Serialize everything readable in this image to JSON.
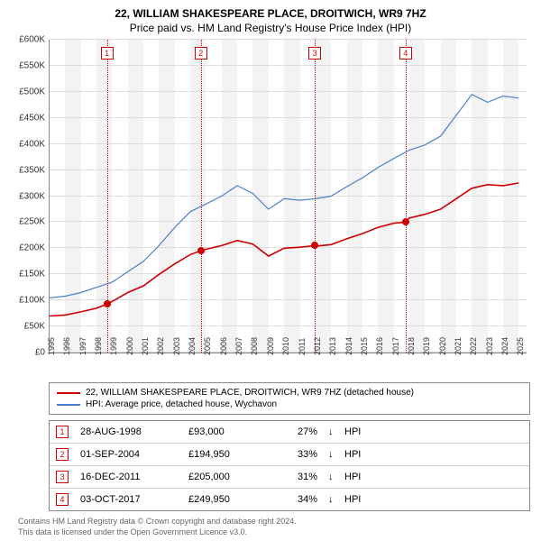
{
  "title_line1": "22, WILLIAM SHAKESPEARE PLACE, DROITWICH, WR9 7HZ",
  "title_line2": "Price paid vs. HM Land Registry's House Price Index (HPI)",
  "chart": {
    "type": "line",
    "background_color": "#ffffff",
    "band_color": "#f3f3f3",
    "grid_color": "#dddddd",
    "axis_color": "#888888",
    "x": {
      "min": 1995,
      "max": 2025.5,
      "ticks": [
        1995,
        1996,
        1997,
        1998,
        1999,
        2000,
        2001,
        2002,
        2003,
        2004,
        2005,
        2006,
        2007,
        2008,
        2009,
        2010,
        2011,
        2012,
        2013,
        2014,
        2015,
        2016,
        2017,
        2018,
        2019,
        2020,
        2021,
        2022,
        2023,
        2024,
        2025
      ]
    },
    "y": {
      "min": 0,
      "max": 600000,
      "tick_step": 50000,
      "labels": [
        "£0",
        "£50K",
        "£100K",
        "£150K",
        "£200K",
        "£250K",
        "£300K",
        "£350K",
        "£400K",
        "£450K",
        "£500K",
        "£550K",
        "£600K"
      ]
    },
    "series": [
      {
        "name": "22, WILLIAM SHAKESPEARE PLACE, DROITWICH, WR9 7HZ (detached house)",
        "color": "#cc0000",
        "width": 1.6,
        "points": [
          [
            1995,
            70000
          ],
          [
            1996,
            72000
          ],
          [
            1997,
            78000
          ],
          [
            1998,
            85000
          ],
          [
            1998.67,
            93000
          ],
          [
            1999,
            98000
          ],
          [
            2000,
            115000
          ],
          [
            2001,
            128000
          ],
          [
            2002,
            150000
          ],
          [
            2003,
            170000
          ],
          [
            2004,
            188000
          ],
          [
            2004.67,
            194950
          ],
          [
            2005,
            198000
          ],
          [
            2006,
            205000
          ],
          [
            2007,
            215000
          ],
          [
            2008,
            208000
          ],
          [
            2009,
            185000
          ],
          [
            2010,
            200000
          ],
          [
            2011,
            202000
          ],
          [
            2011.96,
            205000
          ],
          [
            2012,
            204000
          ],
          [
            2013,
            207000
          ],
          [
            2014,
            218000
          ],
          [
            2015,
            228000
          ],
          [
            2016,
            240000
          ],
          [
            2017,
            248000
          ],
          [
            2017.76,
            249950
          ],
          [
            2018,
            258000
          ],
          [
            2019,
            265000
          ],
          [
            2020,
            275000
          ],
          [
            2021,
            295000
          ],
          [
            2022,
            315000
          ],
          [
            2023,
            322000
          ],
          [
            2024,
            320000
          ],
          [
            2025,
            325000
          ]
        ]
      },
      {
        "name": "HPI: Average price, detached house, Wychavon",
        "color": "#4a7ecc",
        "width": 1.2,
        "points": [
          [
            1995,
            105000
          ],
          [
            1996,
            108000
          ],
          [
            1997,
            115000
          ],
          [
            1998,
            125000
          ],
          [
            1999,
            135000
          ],
          [
            2000,
            155000
          ],
          [
            2001,
            175000
          ],
          [
            2002,
            205000
          ],
          [
            2003,
            240000
          ],
          [
            2004,
            270000
          ],
          [
            2005,
            285000
          ],
          [
            2006,
            300000
          ],
          [
            2007,
            320000
          ],
          [
            2008,
            305000
          ],
          [
            2009,
            275000
          ],
          [
            2010,
            295000
          ],
          [
            2011,
            292000
          ],
          [
            2012,
            295000
          ],
          [
            2013,
            300000
          ],
          [
            2014,
            318000
          ],
          [
            2015,
            335000
          ],
          [
            2016,
            355000
          ],
          [
            2017,
            372000
          ],
          [
            2018,
            388000
          ],
          [
            2019,
            398000
          ],
          [
            2020,
            415000
          ],
          [
            2021,
            455000
          ],
          [
            2022,
            495000
          ],
          [
            2023,
            480000
          ],
          [
            2024,
            492000
          ],
          [
            2025,
            488000
          ]
        ]
      }
    ],
    "sales_markers": [
      {
        "n": "1",
        "year": 1998.67,
        "price": 93000
      },
      {
        "n": "2",
        "year": 2004.67,
        "price": 194950
      },
      {
        "n": "3",
        "year": 2011.96,
        "price": 205000
      },
      {
        "n": "4",
        "year": 2017.76,
        "price": 249950
      }
    ],
    "marker_box_color": "#cc0000",
    "marker_dot_color": "#cc0000"
  },
  "legend": [
    {
      "color": "#cc0000",
      "label": "22, WILLIAM SHAKESPEARE PLACE, DROITWICH, WR9 7HZ (detached house)"
    },
    {
      "color": "#4a7ecc",
      "label": "HPI: Average price, detached house, Wychavon"
    }
  ],
  "sales_table": {
    "hpi_label": "HPI",
    "arrow_glyph": "↓",
    "rows": [
      {
        "n": "1",
        "date": "28-AUG-1998",
        "price": "£93,000",
        "pct": "27%"
      },
      {
        "n": "2",
        "date": "01-SEP-2004",
        "price": "£194,950",
        "pct": "33%"
      },
      {
        "n": "3",
        "date": "16-DEC-2011",
        "price": "£205,000",
        "pct": "31%"
      },
      {
        "n": "4",
        "date": "03-OCT-2017",
        "price": "£249,950",
        "pct": "34%"
      }
    ]
  },
  "footer": {
    "line1": "Contains HM Land Registry data © Crown copyright and database right 2024.",
    "line2": "This data is licensed under the Open Government Licence v3.0."
  }
}
